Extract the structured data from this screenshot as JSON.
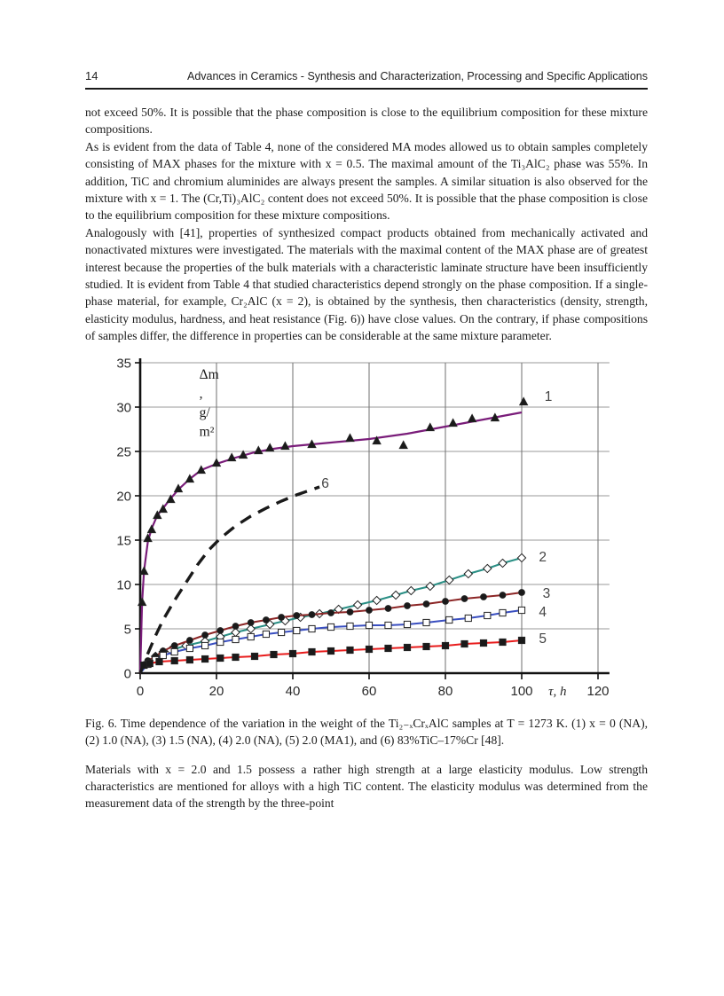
{
  "page": {
    "header": {
      "page_number": "14",
      "running_title": "Advances in Ceramics - Synthesis and Characterization, Processing and Specific Applications"
    },
    "paragraphs": [
      "not exceed 50%. It is possible that the phase composition is close to the equilibrium composition for these mixture compositions.",
      "As is evident from the data of Table 4, none of the considered MA modes allowed us to obtain samples completely consisting of MAX phases for the mixture with x = 0.5. The maximal amount of the Ti₃AlC₂ phase was 55%. In addition, TiC and chromium aluminides are always present the samples. A similar situation is also observed for the mixture with x = 1. The (Cr,Ti)₃AlC₂ content does not exceed 50%. It is possible that the phase composition is close to the equilibrium composition for these mixture compositions.",
      "Analogously with [41], properties of synthesized compact products obtained from mechanically activated and nonactivated mixtures were investigated. The materials with the maximal content of the MAX phase are of greatest interest because the properties of the bulk materials with a characteristic laminate structure have been insufficiently studied. It is evident from Table 4 that studied characteristics depend strongly on the phase composition. If a single-phase material, for example, Cr₂AlC (x = 2), is obtained by the synthesis, then characteristics (density, strength, elasticity modulus, hardness, and heat resistance (Fig. 6)) have close values. On the contrary, if phase compositions of samples differ, the difference in properties can be considerable at the same mixture parameter.",
      "Materials with x = 2.0 and 1.5 possess a rather high strength at a large elasticity modulus. Low strength characteristics are mentioned for alloys with a high TiC content. The elasticity modulus was determined from the measurement data of the strength by the three-point"
    ],
    "figure_caption": "Fig. 6. Time dependence of the variation in the weight of the Ti₂₋ₓCrₓAlC samples at T = 1273 K. (1) x = 0 (NA), (2) 1.0 (NA), (3) 1.5 (NA), (4) 2.0 (NA), (5) 2.0 (MA1), and (6) 83%TiC–17%Cr [48]."
  },
  "chart_data": {
    "type": "line",
    "title": "",
    "xlabel": "τ, h",
    "ylabel_lines": [
      "Δm",
      ",",
      "g/",
      "m²"
    ],
    "xlim": [
      0,
      123
    ],
    "ylim": [
      0,
      35
    ],
    "xticks": [
      0,
      20,
      40,
      60,
      80,
      100,
      120
    ],
    "yticks": [
      0,
      5,
      10,
      15,
      20,
      25,
      30,
      35
    ],
    "grid": true,
    "legend_position": "inline-right",
    "colors": {
      "axis": "#111111",
      "grid_h": "#9a9a9a",
      "grid_v": "#6f6f6f",
      "tick_text": "#2a2a2a",
      "series_label": "#444444"
    },
    "series": [
      {
        "name": "1",
        "legend": "x = 0 (NA)",
        "color": "#7a1d7a",
        "marker": "triangle",
        "marker_fill": "#1a1a1a",
        "dash": null,
        "width": 2.2,
        "label_pos": [
          106,
          31.2
        ],
        "points": [
          [
            0,
            0
          ],
          [
            0.5,
            8
          ],
          [
            1,
            11.5
          ],
          [
            2,
            14.8
          ],
          [
            3,
            16.3
          ],
          [
            4.5,
            17.8
          ],
          [
            6,
            18.6
          ],
          [
            8,
            19.7
          ],
          [
            10,
            20.7
          ],
          [
            13,
            21.9
          ],
          [
            16,
            22.9
          ],
          [
            20,
            23.6
          ],
          [
            25,
            24.3
          ],
          [
            30,
            24.9
          ],
          [
            35,
            25.3
          ],
          [
            40,
            25.6
          ],
          [
            45,
            25.8
          ],
          [
            50,
            26.0
          ],
          [
            55,
            26.2
          ],
          [
            60,
            26.4
          ],
          [
            65,
            26.7
          ],
          [
            70,
            27.0
          ],
          [
            75,
            27.4
          ],
          [
            80,
            27.8
          ],
          [
            85,
            28.2
          ],
          [
            90,
            28.6
          ],
          [
            95,
            29.0
          ],
          [
            100,
            29.4
          ]
        ],
        "marker_points": [
          [
            0.5,
            8
          ],
          [
            1,
            11.5
          ],
          [
            2,
            15.2
          ],
          [
            3,
            16.2
          ],
          [
            4.5,
            17.8
          ],
          [
            6,
            18.5
          ],
          [
            8,
            19.6
          ],
          [
            10,
            20.8
          ],
          [
            13,
            21.9
          ],
          [
            16,
            22.9
          ],
          [
            20,
            23.7
          ],
          [
            24,
            24.3
          ],
          [
            27,
            24.6
          ],
          [
            31,
            25.1
          ],
          [
            34,
            25.4
          ],
          [
            38,
            25.6
          ],
          [
            45,
            25.8
          ],
          [
            55,
            26.5
          ],
          [
            62,
            26.2
          ],
          [
            69,
            25.7
          ],
          [
            76,
            27.7
          ],
          [
            82,
            28.2
          ],
          [
            87,
            28.7
          ],
          [
            93,
            28.8
          ],
          [
            100.5,
            30.6
          ]
        ]
      },
      {
        "name": "2",
        "legend": "1.0 (NA)",
        "color": "#2a8f85",
        "marker": "diamond",
        "marker_fill": "#ffffff",
        "dash": null,
        "width": 2,
        "label_pos": [
          104.5,
          13.1
        ],
        "points": [
          [
            0,
            0
          ],
          [
            2,
            1.1
          ],
          [
            4,
            1.9
          ],
          [
            6,
            2.4
          ],
          [
            8,
            2.6
          ],
          [
            12,
            3.1
          ],
          [
            17,
            3.6
          ],
          [
            21,
            4.1
          ],
          [
            25,
            4.6
          ],
          [
            29,
            5.0
          ],
          [
            34,
            5.5
          ],
          [
            38,
            5.9
          ],
          [
            42,
            6.3
          ],
          [
            47,
            6.7
          ],
          [
            52,
            7.2
          ],
          [
            57,
            7.7
          ],
          [
            62,
            8.2
          ],
          [
            67,
            8.8
          ],
          [
            71,
            9.3
          ],
          [
            76,
            9.8
          ],
          [
            81,
            10.5
          ],
          [
            86,
            11.2
          ],
          [
            91,
            11.8
          ],
          [
            95,
            12.4
          ],
          [
            100,
            13.0
          ]
        ]
      },
      {
        "name": "3",
        "legend": "1.5 (NA)",
        "color": "#8c2626",
        "marker": "circle",
        "marker_fill": "#1a1a1a",
        "dash": null,
        "width": 2,
        "label_pos": [
          105.5,
          9.0
        ],
        "points": [
          [
            0,
            0
          ],
          [
            2,
            1.4
          ],
          [
            4,
            1.9
          ],
          [
            6,
            2.5
          ],
          [
            9,
            3.1
          ],
          [
            13,
            3.7
          ],
          [
            17,
            4.3
          ],
          [
            21,
            4.8
          ],
          [
            25,
            5.3
          ],
          [
            29,
            5.7
          ],
          [
            33,
            6.0
          ],
          [
            37,
            6.3
          ],
          [
            41,
            6.5
          ],
          [
            45,
            6.6
          ],
          [
            50,
            6.8
          ],
          [
            55,
            6.9
          ],
          [
            60,
            7.1
          ],
          [
            65,
            7.3
          ],
          [
            70,
            7.6
          ],
          [
            75,
            7.8
          ],
          [
            80,
            8.1
          ],
          [
            85,
            8.4
          ],
          [
            90,
            8.6
          ],
          [
            95,
            8.8
          ],
          [
            100,
            9.1
          ]
        ]
      },
      {
        "name": "4",
        "legend": "2.0 (NA)",
        "color": "#3a4fc0",
        "marker": "square-open",
        "marker_fill": "#ffffff",
        "dash": null,
        "width": 2,
        "label_pos": [
          104.5,
          6.9
        ],
        "points": [
          [
            0,
            0
          ],
          [
            2,
            1.0
          ],
          [
            4,
            1.5
          ],
          [
            6,
            2.0
          ],
          [
            9,
            2.4
          ],
          [
            13,
            2.8
          ],
          [
            17,
            3.1
          ],
          [
            21,
            3.5
          ],
          [
            25,
            3.8
          ],
          [
            29,
            4.1
          ],
          [
            33,
            4.4
          ],
          [
            37,
            4.6
          ],
          [
            41,
            4.8
          ],
          [
            45,
            5.0
          ],
          [
            50,
            5.2
          ],
          [
            55,
            5.3
          ],
          [
            60,
            5.4
          ],
          [
            65,
            5.4
          ],
          [
            70,
            5.5
          ],
          [
            75,
            5.7
          ],
          [
            81,
            6.0
          ],
          [
            86,
            6.2
          ],
          [
            91,
            6.5
          ],
          [
            95,
            6.8
          ],
          [
            100,
            7.1
          ]
        ]
      },
      {
        "name": "5",
        "legend": "2.0 (MA1)",
        "color": "#e81c1c",
        "marker": "square-filled",
        "marker_fill": "#1a1a1a",
        "dash": null,
        "width": 2,
        "label_pos": [
          104.5,
          3.9
        ],
        "points": [
          [
            0,
            0
          ],
          [
            1,
            0.9
          ],
          [
            2.5,
            1.1
          ],
          [
            5,
            1.3
          ],
          [
            9,
            1.4
          ],
          [
            13,
            1.5
          ],
          [
            17,
            1.6
          ],
          [
            21,
            1.7
          ],
          [
            25,
            1.8
          ],
          [
            30,
            1.9
          ],
          [
            35,
            2.1
          ],
          [
            40,
            2.2
          ],
          [
            45,
            2.4
          ],
          [
            50,
            2.5
          ],
          [
            55,
            2.6
          ],
          [
            60,
            2.7
          ],
          [
            65,
            2.8
          ],
          [
            70,
            2.9
          ],
          [
            75,
            3.0
          ],
          [
            80,
            3.1
          ],
          [
            85,
            3.3
          ],
          [
            90,
            3.4
          ],
          [
            95,
            3.5
          ],
          [
            100,
            3.7
          ]
        ]
      },
      {
        "name": "6",
        "legend": "83%TiC–17%Cr",
        "color": "#1a1a1a",
        "marker": "none",
        "marker_fill": "#1a1a1a",
        "dash": "14,9",
        "width": 3.4,
        "label_pos": [
          47.5,
          21.4
        ],
        "points": [
          [
            0,
            0
          ],
          [
            2,
            2.2
          ],
          [
            4,
            4.2
          ],
          [
            6,
            6.0
          ],
          [
            9,
            8.2
          ],
          [
            12,
            10.2
          ],
          [
            15,
            12.2
          ],
          [
            18,
            13.9
          ],
          [
            21,
            15.2
          ],
          [
            25,
            16.6
          ],
          [
            29,
            17.7
          ],
          [
            33,
            18.6
          ],
          [
            37,
            19.4
          ],
          [
            41,
            20.1
          ],
          [
            45,
            20.7
          ],
          [
            47,
            21.0
          ]
        ]
      }
    ]
  }
}
